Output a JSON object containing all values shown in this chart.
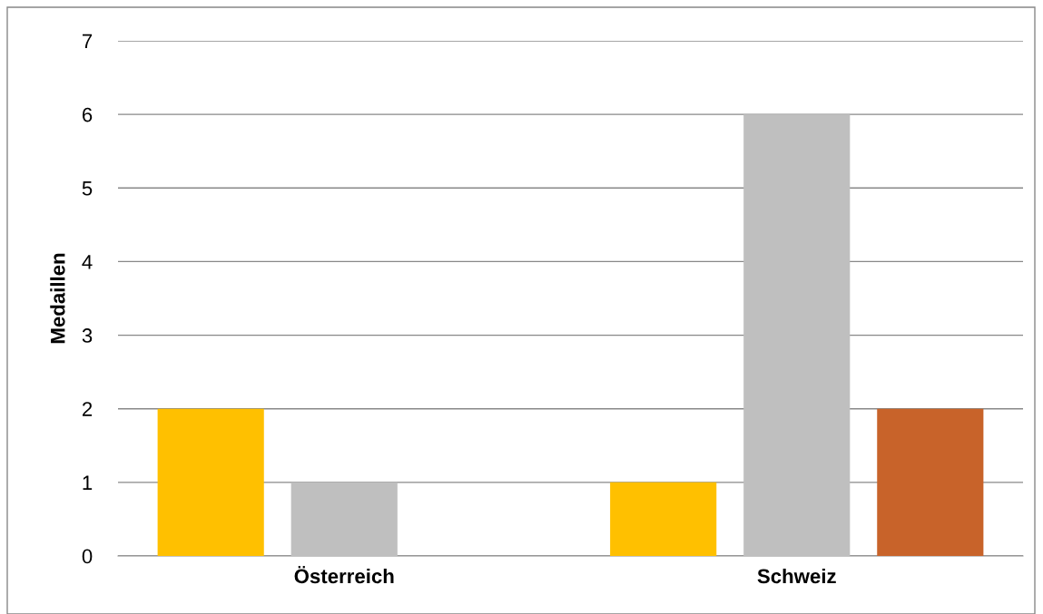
{
  "chart_data": {
    "type": "bar",
    "ylabel": "Medaillen",
    "categories": [
      "Österreich",
      "Schweiz"
    ],
    "series": [
      {
        "color": "#ffc000",
        "values": [
          2,
          1
        ]
      },
      {
        "color": "#bfbfbf",
        "values": [
          1,
          6
        ]
      },
      {
        "color": "#c8632a",
        "values": [
          0,
          2
        ]
      }
    ],
    "ylim": [
      0,
      7
    ],
    "yticks": [
      0,
      1,
      2,
      3,
      4,
      5,
      6,
      7
    ],
    "grid": "y",
    "legend": false
  }
}
